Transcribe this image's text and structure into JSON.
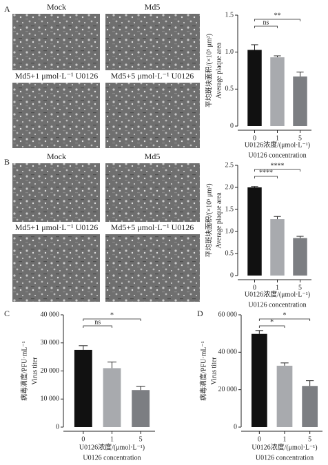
{
  "micrographs": {
    "A": [
      "Mock",
      "Md5",
      "Md5+1 μmol·L⁻¹ U0126",
      "Md5+5 μmol·L⁻¹ U0126"
    ],
    "B": [
      "Mock",
      "Md5",
      "Md5+1 μmol·L⁻¹ U0126",
      "Md5+5 μmol·L⁻¹ U0126"
    ]
  },
  "chart_data": [
    {
      "type": "bar",
      "panel_label": "A",
      "ylabel": [
        "平均斑块面积/(×10⁵ μm²)",
        "Average plaque area"
      ],
      "xlabel": [
        "U0126浓度/(μmol·L⁻¹)",
        "U0126 concentration"
      ],
      "categories": [
        "0",
        "1",
        "5"
      ],
      "values": [
        1.03,
        0.93,
        0.67
      ],
      "errors": [
        0.07,
        0.02,
        0.06
      ],
      "colors": [
        "#111111",
        "#a8aaae",
        "#7c7e82"
      ],
      "ylim": [
        0,
        1.5
      ],
      "yticks": [
        0,
        0.5,
        {
          "value": 1,
          "label": "1.0"
        },
        1.5
      ],
      "significance": [
        "ns",
        "**"
      ]
    },
    {
      "type": "bar",
      "panel_label": "B",
      "ylabel": [
        "平均斑块面积/(×10⁵ μm²)",
        "Average plaque area"
      ],
      "xlabel": [
        "U0126浓度/(μmol·L⁻¹)",
        "U0126 concentration"
      ],
      "categories": [
        "0",
        "1",
        "5"
      ],
      "values": [
        2.0,
        1.28,
        0.85
      ],
      "errors": [
        0.02,
        0.06,
        0.04
      ],
      "colors": [
        "#111111",
        "#a8aaae",
        "#7c7e82"
      ],
      "ylim": [
        0,
        2.5
      ],
      "yticks": [
        0,
        0.5,
        {
          "value": 1,
          "label": "1.0"
        },
        1.5,
        {
          "value": 2,
          "label": "2.0"
        },
        2.5
      ],
      "significance": [
        "****",
        "****"
      ]
    },
    {
      "type": "bar",
      "panel_label": "C",
      "ylabel": [
        "病毒滴度/PFU·mL⁻¹",
        "Virus titer"
      ],
      "xlabel": [
        "U0126浓度/(μmol·L⁻¹)",
        "U0126 concentration"
      ],
      "categories": [
        "0",
        "1",
        "5"
      ],
      "values": [
        27500,
        21000,
        13200
      ],
      "errors": [
        1500,
        2200,
        1300
      ],
      "colors": [
        "#111111",
        "#a8aaae",
        "#7c7e82"
      ],
      "ylim": [
        0,
        40000
      ],
      "yticks": [
        0,
        {
          "value": 10000,
          "label": "10 000"
        },
        {
          "value": 20000,
          "label": "20 000"
        },
        {
          "value": 30000,
          "label": "30 000"
        },
        {
          "value": 40000,
          "label": "40 000"
        }
      ],
      "significance": [
        "ns",
        "*"
      ]
    },
    {
      "type": "bar",
      "panel_label": "D",
      "ylabel": [
        "病毒滴度/PFU·mL⁻¹",
        "Virus titer"
      ],
      "xlabel": [
        "U0126浓度/(μmol·L⁻¹)",
        "U0126 concentration"
      ],
      "categories": [
        "0",
        "1",
        "5"
      ],
      "values": [
        49800,
        32800,
        22000
      ],
      "errors": [
        1800,
        1500,
        2800
      ],
      "colors": [
        "#111111",
        "#a8aaae",
        "#7c7e82"
      ],
      "ylim": [
        0,
        60000
      ],
      "yticks": [
        0,
        {
          "value": 20000,
          "label": "20 000"
        },
        {
          "value": 40000,
          "label": "40 000"
        },
        {
          "value": 60000,
          "label": "60 000"
        }
      ],
      "significance": [
        "*",
        "*"
      ]
    }
  ]
}
